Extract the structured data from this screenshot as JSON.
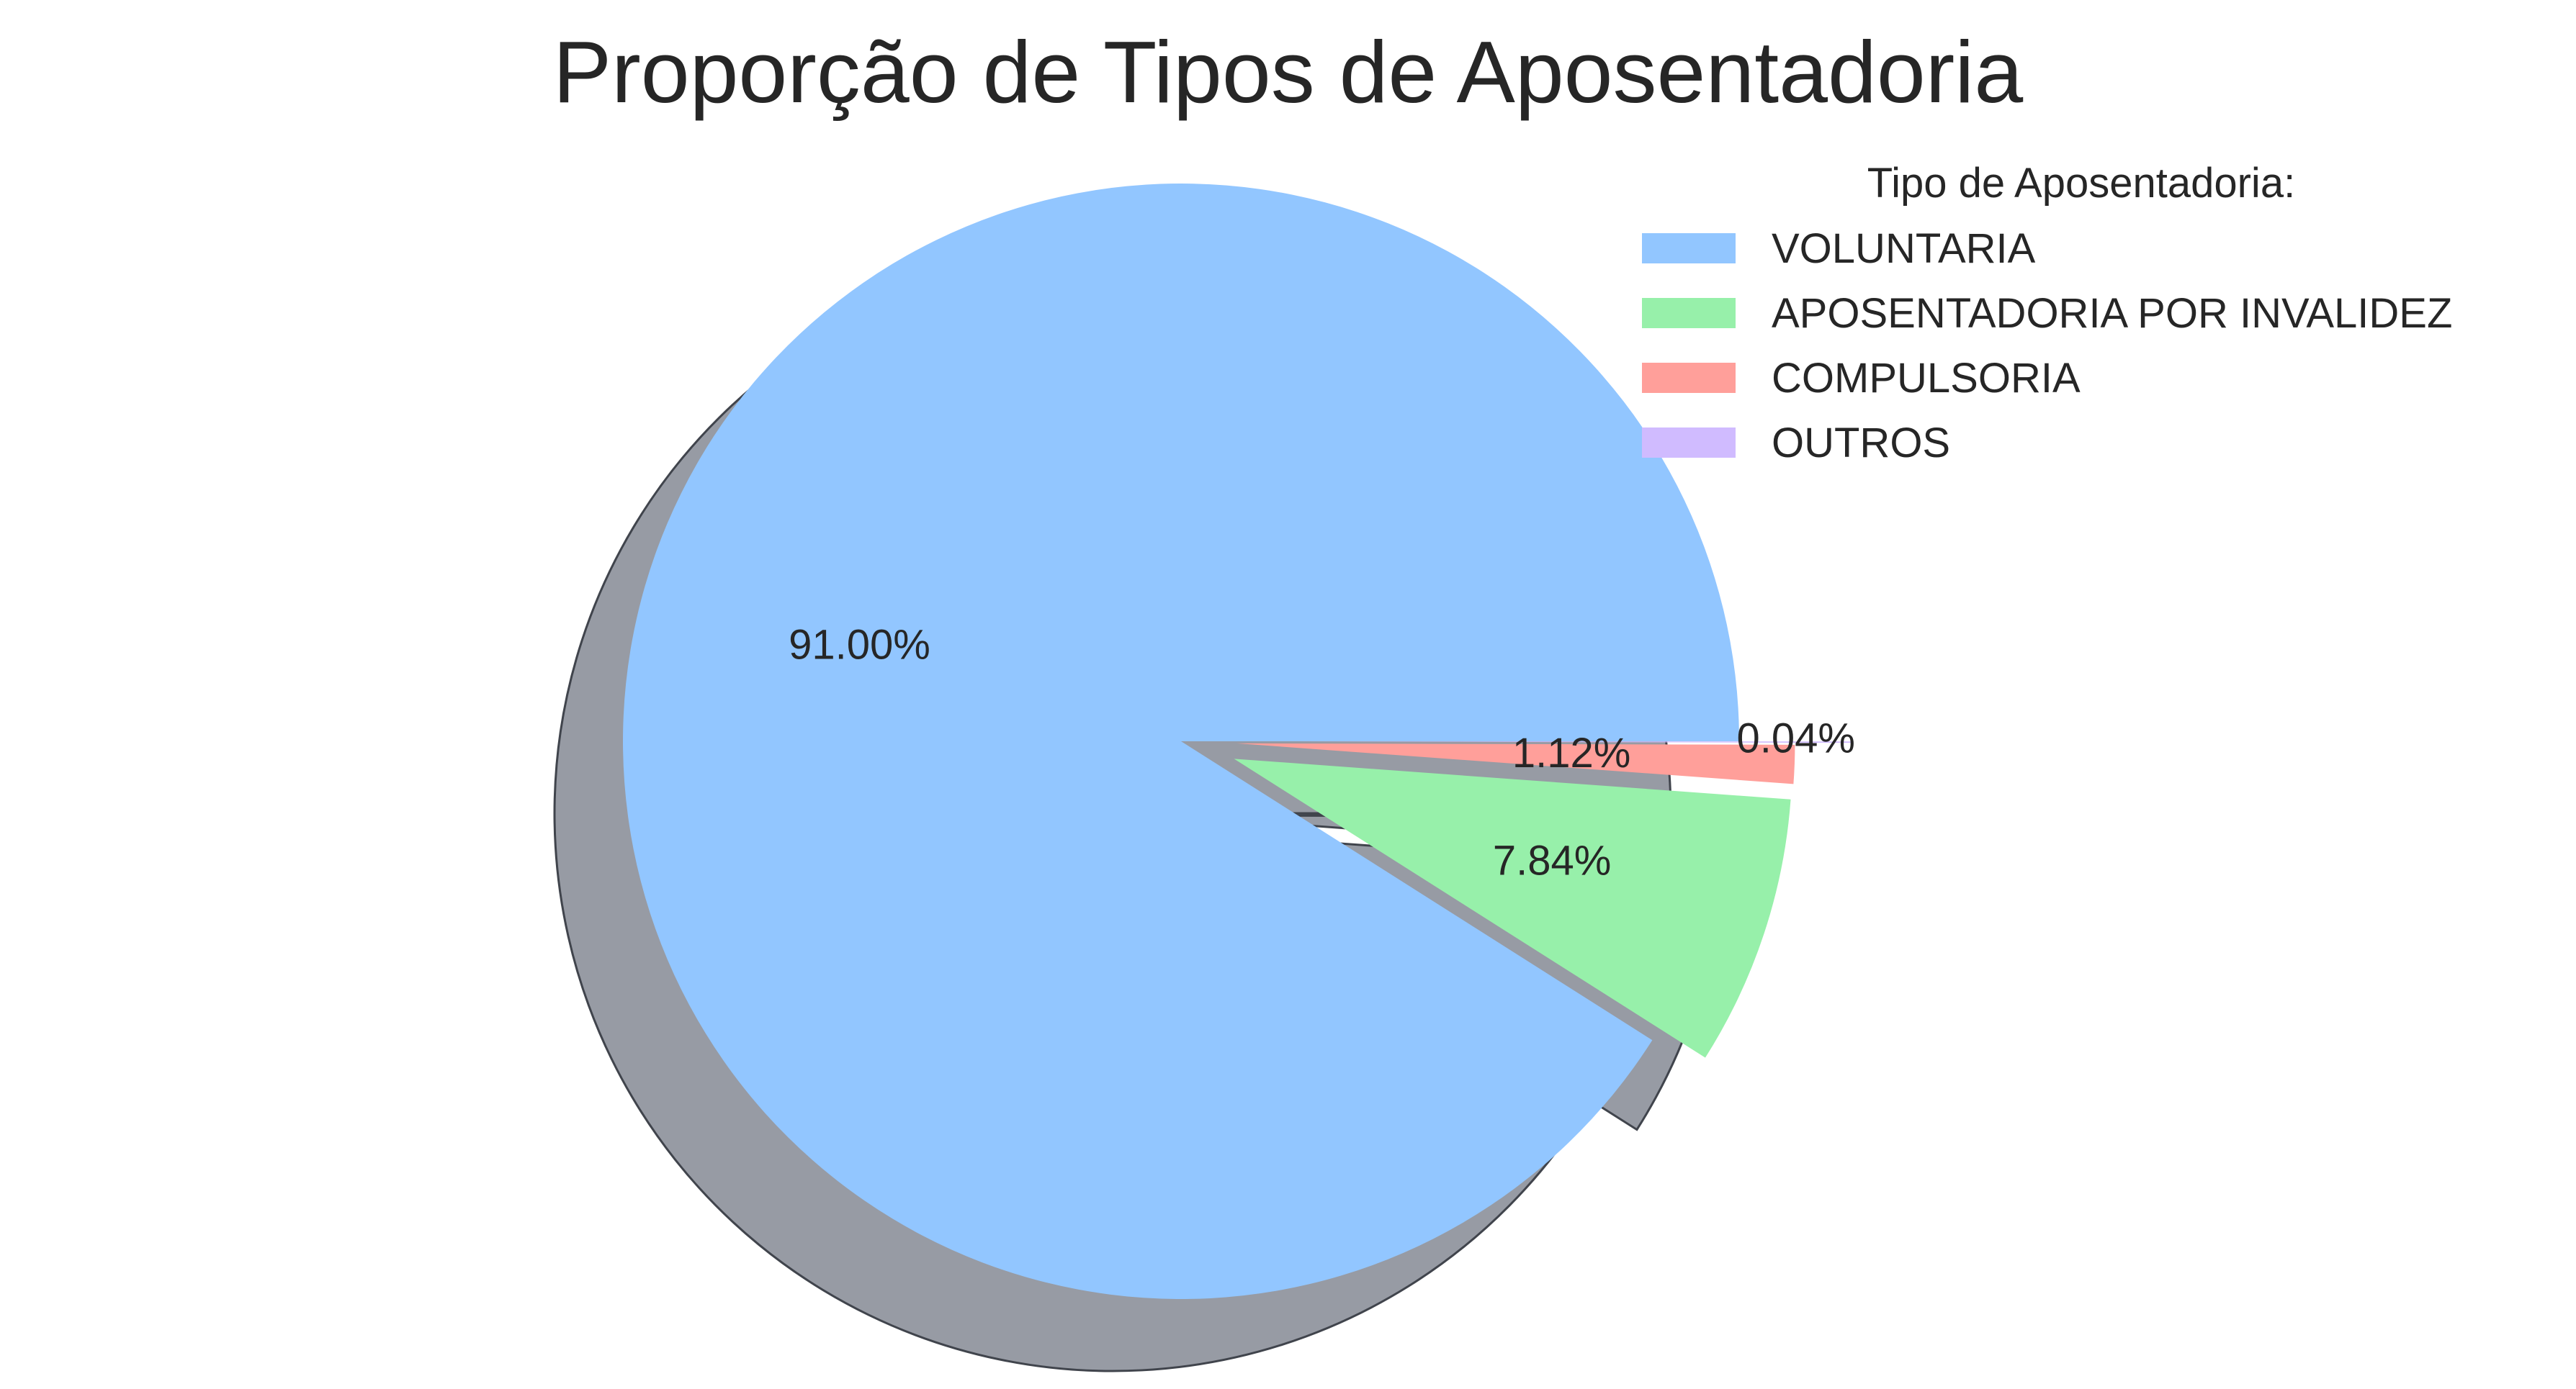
{
  "chart_data": {
    "type": "pie",
    "title": "Proporção de Tipos de Aposentadoria",
    "legend_title": "Tipo de Aposentadoria:",
    "legend_position": "top-right",
    "shadow": true,
    "slices": [
      {
        "label": "VOLUNTARIA",
        "value": 91.0,
        "pct_label": "91.00%",
        "color": "#92c6ff",
        "explode": 0
      },
      {
        "label": "APOSENTADORIA POR INVALIDEZ",
        "value": 7.84,
        "pct_label": "7.84%",
        "color": "#97f0aa",
        "explode": 0.1
      },
      {
        "label": "COMPULSORIA",
        "value": 1.12,
        "pct_label": "1.12%",
        "color": "#ff9f9a",
        "explode": 0.1
      },
      {
        "label": "OUTROS",
        "value": 0.04,
        "pct_label": "0.04%",
        "color": "#d0bbff",
        "explode": 0.2
      }
    ]
  }
}
